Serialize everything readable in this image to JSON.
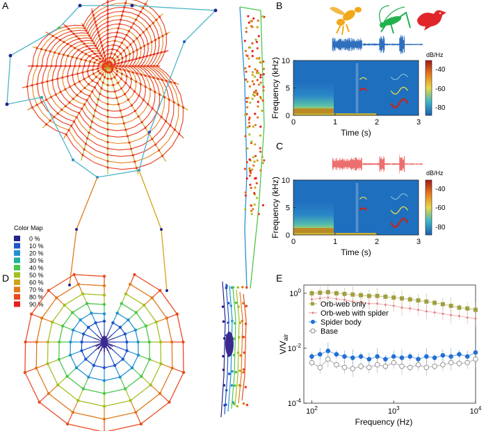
{
  "panels": {
    "a": "A",
    "b": "B",
    "c": "C",
    "d": "D",
    "e": "E"
  },
  "colormap_legend": {
    "title": "Color Map",
    "entries": [
      {
        "label": "0 %",
        "color": "#22238a"
      },
      {
        "label": "10 %",
        "color": "#1f55c8"
      },
      {
        "label": "20 %",
        "color": "#2491d2"
      },
      {
        "label": "30 %",
        "color": "#1fb19e"
      },
      {
        "label": "40 %",
        "color": "#4bc64a"
      },
      {
        "label": "50 %",
        "color": "#a4bf1f"
      },
      {
        "label": "60 %",
        "color": "#d1a31a"
      },
      {
        "label": "70 %",
        "color": "#e0791a"
      },
      {
        "label": "80 %",
        "color": "#e84a1f"
      },
      {
        "label": "90 %",
        "color": "#e61e1e"
      }
    ]
  },
  "spectrogram_b": {
    "ylabel": "Frequency (kHz)",
    "xlabel": "Time (s)",
    "yticks": [
      "0",
      "5",
      "10"
    ],
    "xticks": [
      "0",
      "1",
      "2",
      "3"
    ],
    "colorbar_title": "dB/Hz",
    "colorbar_ticks": [
      "-40",
      "-60",
      "-80"
    ],
    "waveform_color": "#2f6fbd",
    "icon_colors": {
      "wasp": "#f2a81a",
      "cricket": "#22b14c",
      "bird": "#e0262a"
    }
  },
  "spectrogram_c": {
    "ylabel": "Frequency (kHz)",
    "xlabel": "Time (s)",
    "yticks": [
      "0",
      "5",
      "10"
    ],
    "xticks": [
      "0",
      "1",
      "2",
      "3"
    ],
    "colorbar_title": "dB/Hz",
    "colorbar_ticks": [
      "-40",
      "-60",
      "-80"
    ],
    "waveform_color": "#ec6f6f"
  },
  "chart_data": {
    "type": "scatter",
    "ylabel_main": "V/V",
    "ylabel_sub": "air",
    "xlabel": "Frequency (Hz)",
    "xscale": "log",
    "yscale": "log",
    "xlim": [
      80,
      10000
    ],
    "ylim": [
      0.0001,
      2
    ],
    "xticks": [
      {
        "v": 100,
        "base": "10",
        "exp": "2"
      },
      {
        "v": 1000,
        "base": "10",
        "exp": "3"
      },
      {
        "v": 10000,
        "base": "10",
        "exp": "4"
      }
    ],
    "yticks": [
      {
        "v": 1,
        "base": "10",
        "exp": "0"
      },
      {
        "v": 0.01,
        "base": "10",
        "exp": "-2"
      },
      {
        "v": 0.0001,
        "base": "10",
        "exp": "-4"
      }
    ],
    "x": [
      100,
      126,
      158,
      200,
      251,
      316,
      398,
      501,
      631,
      794,
      1000,
      1259,
      1585,
      1995,
      2512,
      3162,
      3981,
      5012,
      6310,
      7943,
      10000
    ],
    "series": [
      {
        "name": "Orb-web only",
        "marker": "square",
        "color": "#a0a040",
        "values": [
          1.0,
          1.05,
          1.1,
          1.0,
          0.95,
          0.9,
          0.85,
          0.8,
          0.8,
          0.75,
          0.7,
          0.65,
          0.6,
          0.55,
          0.5,
          0.45,
          0.4,
          0.35,
          0.3,
          0.28,
          0.25
        ]
      },
      {
        "name": "Orb-web with spider",
        "marker": "dot",
        "color": "#e08080",
        "values": [
          0.6,
          0.65,
          0.7,
          0.62,
          0.58,
          0.5,
          0.48,
          0.42,
          0.42,
          0.38,
          0.35,
          0.3,
          0.28,
          0.25,
          0.22,
          0.2,
          0.18,
          0.16,
          0.15,
          0.13,
          0.12
        ]
      },
      {
        "name": "Spider body",
        "marker": "circle",
        "color": "#1f6fd6",
        "values": [
          0.005,
          0.006,
          0.008,
          0.006,
          0.005,
          0.0045,
          0.005,
          0.004,
          0.005,
          0.004,
          0.005,
          0.0045,
          0.005,
          0.004,
          0.005,
          0.0045,
          0.0055,
          0.005,
          0.006,
          0.005,
          0.007
        ]
      },
      {
        "name": "Base",
        "marker": "open-circle",
        "color": "#888888",
        "values": [
          0.003,
          0.002,
          0.004,
          0.0025,
          0.002,
          0.0018,
          0.0022,
          0.002,
          0.0025,
          0.0022,
          0.003,
          0.0022,
          0.002,
          0.0025,
          0.002,
          0.0022,
          0.0025,
          0.003,
          0.0028,
          0.003,
          0.004
        ]
      }
    ]
  }
}
